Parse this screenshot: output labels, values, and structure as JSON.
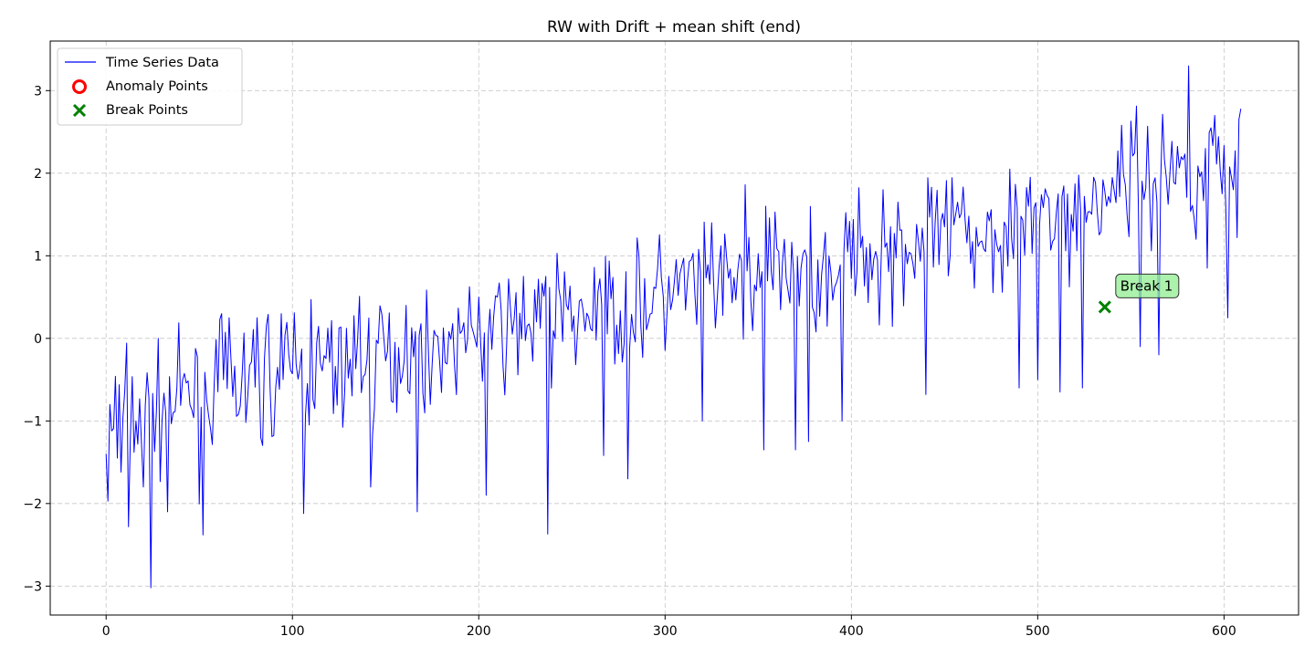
{
  "chart_data": {
    "type": "line",
    "title": "RW with Drift + mean shift (end)",
    "xlabel": "",
    "ylabel": "",
    "xlim": [
      -30,
      640
    ],
    "ylim": [
      -3.35,
      3.6
    ],
    "xticks": [
      0,
      100,
      200,
      300,
      400,
      500,
      600
    ],
    "yticks": [
      -3,
      -2,
      -1,
      0,
      1,
      2,
      3
    ],
    "xtick_labels": [
      "0",
      "100",
      "200",
      "300",
      "400",
      "500",
      "600"
    ],
    "ytick_labels": [
      "−3",
      "−2",
      "−1",
      "0",
      "1",
      "2",
      "3"
    ],
    "grid": true,
    "legend_position": "upper-left",
    "series": [
      {
        "name": "Time Series Data",
        "color": "#0000ff",
        "trend": {
          "n": 609,
          "start": -0.95,
          "end": 1.95,
          "noise": 0.62,
          "seed": 7
        },
        "anchors": [
          [
            0,
            -1.4
          ],
          [
            1,
            -1.97
          ],
          [
            2,
            -0.8
          ],
          [
            3,
            -1.12
          ],
          [
            5,
            -0.46
          ],
          [
            6,
            -1.45
          ],
          [
            8,
            -1.62
          ],
          [
            12,
            -2.28
          ],
          [
            16,
            -1.0
          ],
          [
            17,
            -1.28
          ],
          [
            20,
            -1.8
          ],
          [
            24,
            -3.02
          ],
          [
            30,
            -1.0
          ],
          [
            33,
            -2.1
          ],
          [
            38,
            -0.6
          ],
          [
            52,
            -2.38
          ],
          [
            62,
            0.3
          ],
          [
            66,
            0.25
          ],
          [
            81,
            0.25
          ],
          [
            86,
            0.15
          ],
          [
            94,
            0.3
          ],
          [
            101,
            0.31
          ],
          [
            106,
            -2.12
          ],
          [
            110,
            0.47
          ],
          [
            136,
            0.51
          ],
          [
            142,
            -1.8
          ],
          [
            161,
            0.4
          ],
          [
            167,
            -2.1
          ],
          [
            175,
            -0.3
          ],
          [
            190,
            0.06
          ],
          [
            200,
            0.5
          ],
          [
            204,
            -1.9
          ],
          [
            210,
            0.5
          ],
          [
            224,
            0.75
          ],
          [
            236,
            0.75
          ],
          [
            237,
            -2.37
          ],
          [
            242,
            1.03
          ],
          [
            262,
            0.86
          ],
          [
            267,
            -1.42
          ],
          [
            280,
            -1.7
          ],
          [
            296,
            0.85
          ],
          [
            310,
            0.97
          ],
          [
            315,
            1.03
          ],
          [
            320,
            -1.0
          ],
          [
            325,
            1.4
          ],
          [
            343,
            1.86
          ],
          [
            353,
            -1.35
          ],
          [
            356,
            1.46
          ],
          [
            364,
            1.2
          ],
          [
            370,
            -1.35
          ],
          [
            377,
            -1.25
          ],
          [
            395,
            -1.0
          ],
          [
            405,
            1.1
          ],
          [
            408,
            1.1
          ],
          [
            417,
            1.8
          ],
          [
            425,
            1.65
          ],
          [
            440,
            -0.68
          ],
          [
            450,
            1.35
          ],
          [
            485,
            2.05
          ],
          [
            490,
            -0.6
          ],
          [
            495,
            1.6
          ],
          [
            500,
            -0.5
          ],
          [
            512,
            -0.65
          ],
          [
            519,
            1.3
          ],
          [
            524,
            -0.6
          ],
          [
            530,
            1.95
          ],
          [
            535,
            1.92
          ],
          [
            543,
            2.27
          ],
          [
            550,
            2.63
          ],
          [
            555,
            -0.1
          ],
          [
            565,
            -0.2
          ],
          [
            577,
            2.2
          ],
          [
            581,
            3.3
          ],
          [
            585,
            1.2
          ],
          [
            590,
            2.3
          ],
          [
            591,
            0.85
          ],
          [
            595,
            2.7
          ],
          [
            599,
            1.75
          ],
          [
            602,
            0.25
          ],
          [
            605,
            1.8
          ],
          [
            607,
            1.22
          ],
          [
            608,
            2.65
          ],
          [
            609,
            2.78
          ]
        ]
      },
      {
        "name": "Anomaly Points",
        "color": "#ff0000",
        "points": []
      },
      {
        "name": "Break Points",
        "color": "#008000",
        "points": [
          [
            536,
            0.38
          ]
        ]
      }
    ],
    "legend": {
      "entries": [
        {
          "label": "Time Series Data",
          "marker": "line",
          "color": "#0000ff"
        },
        {
          "label": "Anomaly Points",
          "marker": "circle",
          "color": "#ff0000"
        },
        {
          "label": "Break Points",
          "marker": "x",
          "color": "#008000"
        }
      ]
    },
    "annotations": [
      {
        "text": "Break 1",
        "x": 536,
        "y": 0.38,
        "box_color": "#90ee90"
      }
    ]
  }
}
